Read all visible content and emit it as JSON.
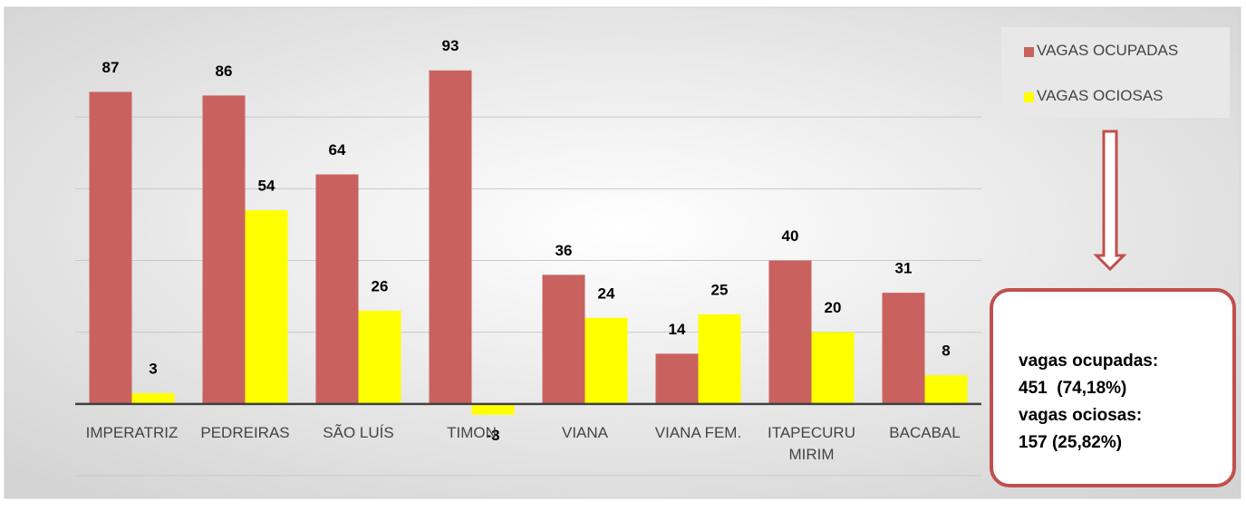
{
  "chart_data": {
    "type": "bar",
    "categories": [
      "IMPERATRIZ",
      "PEDREIRAS",
      "SÃO LUÍS",
      "TIMON",
      "VIANA",
      "VIANA FEM.",
      "ITAPECURU MIRIM",
      "BACABAL"
    ],
    "series": [
      {
        "name": "VAGAS OCUPADAS",
        "color": "#c9625f",
        "values": [
          87,
          86,
          64,
          93,
          36,
          14,
          40,
          31
        ]
      },
      {
        "name": "VAGAS OCIOSAS",
        "color": "#ffff00",
        "values": [
          3,
          54,
          26,
          -3,
          24,
          25,
          20,
          8
        ]
      }
    ],
    "ylim": [
      -20,
      100
    ],
    "yticks": [
      -20,
      0,
      20,
      40,
      60,
      80
    ],
    "grid": true,
    "legend": "top-right",
    "annotations": [
      "vagas ocupadas:",
      "451  (74,18%)",
      "vagas ociosas:",
      "157 (25,82%)"
    ]
  }
}
